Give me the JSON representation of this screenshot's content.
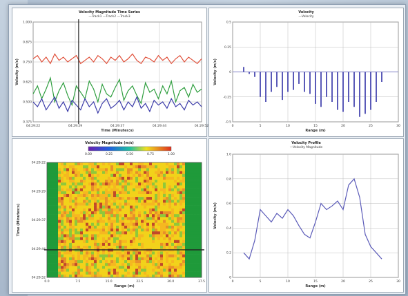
{
  "panels": {
    "timeseries": {
      "title": "Velocity Magnitude Time Series",
      "legend": "—Track1 —Track2 —Track3",
      "xlabel": "Time (Minutes:s)",
      "ylabel": "Velocity (m/s)",
      "xticks": [
        "04:29:22",
        "04:29:29",
        "04:29:37",
        "04:29:44",
        "04:29:52"
      ],
      "yticks": [
        "1.000",
        "0.875",
        "0.750",
        "0.625",
        "0.500",
        "0.375"
      ]
    },
    "velocity": {
      "title": "Velocity",
      "legend": "—Velocity",
      "xlabel": "Range (m)",
      "ylabel": "Velocity (m/s)",
      "xticks": [
        "0",
        "5",
        "10",
        "15",
        "20",
        "25",
        "30"
      ],
      "yticks": [
        "0.5",
        "0.25",
        "0",
        "-0.25",
        "-0.5"
      ]
    },
    "heatmap": {
      "title": "Velocity Magnitude (m/s)",
      "colorbar_ticks": [
        "0.00",
        "0.25",
        "0.50",
        "0.75",
        "1.00"
      ],
      "xlabel": "Range (m)",
      "ylabel": "Time (Minutes:s)",
      "xticks": [
        "0.0",
        "7.5",
        "15.0",
        "22.5",
        "30.0",
        "37.5"
      ],
      "yticks": [
        "04:29:22",
        "04:29:29",
        "04:29:37",
        "04:29:44",
        "04:29:52"
      ]
    },
    "profile": {
      "title": "Velocity Profile",
      "legend": "—Velocity Magnitude",
      "xlabel": "Range (m)",
      "ylabel": "Velocity (m/s)",
      "xticks": [
        "0",
        "5",
        "10",
        "15",
        "20",
        "25",
        "30"
      ],
      "yticks": [
        "1.0",
        "0.8",
        "0.6",
        "0.4",
        "0.2",
        "0"
      ]
    }
  },
  "colors": {
    "red": "#e0503a",
    "green": "#2e9e3e",
    "blue": "#3a3aa8",
    "bar": "#5a5ab8",
    "heat_edge": "#1f9a3a",
    "heat_mid": "#f2d21a"
  },
  "chart_data": [
    {
      "type": "line",
      "title": "Velocity Magnitude Time Series",
      "x": [
        0,
        1,
        2,
        3,
        4,
        5,
        6,
        7,
        8,
        9,
        10,
        11,
        12,
        13,
        14,
        15,
        16,
        17,
        18,
        19,
        20,
        21,
        22,
        23,
        24,
        25,
        26,
        27,
        28,
        29,
        30,
        31,
        32,
        33,
        34,
        35,
        36,
        37,
        38,
        39
      ],
      "series": [
        {
          "name": "Track1",
          "values": [
            0.77,
            0.79,
            0.75,
            0.78,
            0.74,
            0.8,
            0.76,
            0.78,
            0.75,
            0.77,
            0.79,
            0.74,
            0.76,
            0.78,
            0.75,
            0.79,
            0.77,
            0.74,
            0.78,
            0.76,
            0.79,
            0.75,
            0.77,
            0.8,
            0.76,
            0.74,
            0.78,
            0.77,
            0.75,
            0.79,
            0.76,
            0.78,
            0.74,
            0.77,
            0.79,
            0.75,
            0.78,
            0.76,
            0.74,
            0.77
          ]
        },
        {
          "name": "Track2",
          "values": [
            0.55,
            0.6,
            0.52,
            0.58,
            0.65,
            0.5,
            0.57,
            0.62,
            0.54,
            0.48,
            0.6,
            0.56,
            0.52,
            0.63,
            0.58,
            0.5,
            0.61,
            0.55,
            0.53,
            0.59,
            0.64,
            0.51,
            0.57,
            0.6,
            0.54,
            0.49,
            0.62,
            0.56,
            0.58,
            0.52,
            0.6,
            0.55,
            0.63,
            0.5,
            0.57,
            0.59,
            0.53,
            0.61,
            0.56,
            0.58
          ]
        },
        {
          "name": "Track3",
          "values": [
            0.5,
            0.47,
            0.52,
            0.45,
            0.49,
            0.53,
            0.46,
            0.5,
            0.44,
            0.51,
            0.48,
            0.45,
            0.52,
            0.47,
            0.5,
            0.43,
            0.49,
            0.52,
            0.46,
            0.48,
            0.51,
            0.45,
            0.5,
            0.47,
            0.53,
            0.46,
            0.49,
            0.44,
            0.51,
            0.48,
            0.5,
            0.46,
            0.52,
            0.47,
            0.49,
            0.45,
            0.51,
            0.48,
            0.5,
            0.47
          ]
        }
      ]
    },
    {
      "type": "bar",
      "title": "Velocity",
      "x": [
        2,
        3,
        4,
        5,
        6,
        7,
        8,
        9,
        10,
        11,
        12,
        13,
        14,
        15,
        16,
        17,
        18,
        19,
        20,
        21,
        22,
        23,
        24,
        25,
        26,
        27
      ],
      "values": [
        0.05,
        -0.02,
        -0.05,
        -0.25,
        -0.3,
        -0.2,
        -0.15,
        -0.28,
        -0.2,
        -0.18,
        -0.12,
        -0.2,
        -0.22,
        -0.32,
        -0.35,
        -0.25,
        -0.3,
        -0.38,
        -0.4,
        -0.3,
        -0.35,
        -0.45,
        -0.42,
        -0.38,
        -0.3,
        -0.1
      ],
      "ylim": [
        -0.5,
        0.5
      ]
    },
    {
      "type": "line",
      "title": "Velocity Profile",
      "x": [
        2,
        3,
        4,
        5,
        6,
        7,
        8,
        9,
        10,
        11,
        12,
        13,
        14,
        15,
        16,
        17,
        18,
        19,
        20,
        21,
        22,
        23,
        24,
        25,
        26,
        27
      ],
      "values": [
        0.2,
        0.15,
        0.3,
        0.55,
        0.5,
        0.45,
        0.52,
        0.48,
        0.55,
        0.5,
        0.42,
        0.35,
        0.32,
        0.45,
        0.6,
        0.55,
        0.58,
        0.62,
        0.55,
        0.75,
        0.8,
        0.65,
        0.35,
        0.25,
        0.2,
        0.15
      ],
      "ylim": [
        0,
        1
      ]
    }
  ]
}
